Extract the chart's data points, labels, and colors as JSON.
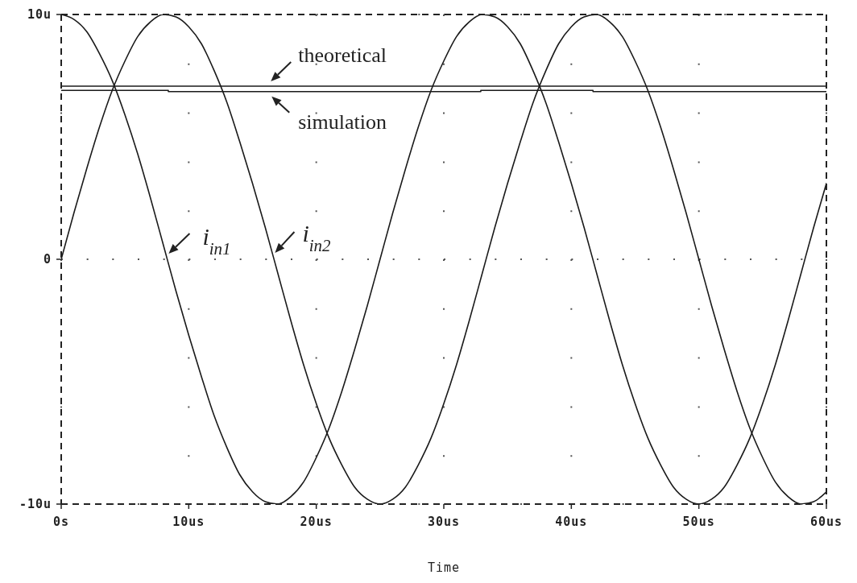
{
  "chart_data": {
    "type": "line",
    "xlabel": "Time",
    "x": [
      0,
      1,
      2,
      3,
      4,
      5,
      6,
      7,
      8,
      9,
      10,
      11,
      12,
      13,
      14,
      15,
      16,
      17,
      18,
      19,
      20,
      21,
      22,
      23,
      24,
      25,
      26,
      27,
      28,
      29,
      30,
      31,
      32,
      33,
      34,
      35,
      36,
      37,
      38,
      39,
      40,
      41,
      42,
      43,
      44,
      45,
      46,
      47,
      48,
      49,
      50,
      51,
      52,
      53,
      54,
      55,
      56,
      57,
      58,
      59,
      60
    ],
    "series": [
      {
        "color": "#1a1a1a",
        "values": [
          10,
          9.8,
          9.3,
          8.4,
          7.3,
          5.9,
          4.3,
          2.5,
          0.6,
          -1.3,
          -3.1,
          -4.8,
          -6.4,
          -7.7,
          -8.8,
          -9.5,
          -9.9,
          -10,
          -9.7,
          -9.1,
          -8.1,
          -6.9,
          -5.4,
          -3.7,
          -1.9,
          0,
          1.9,
          3.7,
          5.4,
          6.9,
          8.1,
          9.1,
          9.7,
          10,
          9.9,
          9.5,
          8.8,
          7.7,
          6.4,
          4.8,
          3.1,
          1.3,
          -0.6,
          -2.5,
          -4.3,
          -5.9,
          -7.3,
          -8.4,
          -9.3,
          -9.8,
          -10,
          -9.8,
          -9.3,
          -8.4,
          -7.3,
          -5.9,
          -4.3,
          -2.5,
          -0.6,
          1.3,
          3.1
        ]
      },
      {
        "color": "#1a1a1a",
        "values": [
          0,
          1.9,
          3.7,
          5.4,
          6.9,
          8.1,
          9.1,
          9.7,
          10,
          9.9,
          9.5,
          8.8,
          7.7,
          6.4,
          4.8,
          3.1,
          1.3,
          -0.6,
          -2.5,
          -4.3,
          -5.9,
          -7.3,
          -8.4,
          -9.3,
          -9.8,
          -10,
          -9.8,
          -9.3,
          -8.4,
          -7.3,
          -5.9,
          -4.3,
          -2.5,
          -0.6,
          1.3,
          3.1,
          4.8,
          6.4,
          7.7,
          8.8,
          9.5,
          9.9,
          10,
          9.7,
          9.1,
          8.1,
          6.9,
          5.4,
          3.7,
          1.9,
          0,
          -1.9,
          -3.7,
          -5.4,
          -6.9,
          -8.1,
          -9.1,
          -9.7,
          -10,
          -9.9,
          -9.5
        ]
      },
      {
        "type": "line",
        "x": [
          0,
          60
        ],
        "color": "#1a1a1a",
        "values": [
          7.07,
          7.07
        ]
      },
      {
        "type": "step",
        "x": [
          0,
          8.4,
          32.9,
          41.7,
          60
        ],
        "color": "#1a1a1a",
        "values": [
          6.9,
          6.85,
          6.9,
          6.85,
          6.85
        ]
      }
    ],
    "xlim": [
      0,
      60
    ],
    "xticks": [
      {
        "value": 0,
        "label": "0s"
      },
      {
        "value": 10,
        "label": "10us"
      },
      {
        "value": 20,
        "label": "20us"
      },
      {
        "value": 30,
        "label": "30us"
      },
      {
        "value": 40,
        "label": "40us"
      },
      {
        "value": 50,
        "label": "50us"
      },
      {
        "value": 60,
        "label": "60us"
      }
    ],
    "ylim": [
      -10,
      10
    ],
    "yticks": [
      {
        "value": -10,
        "label": "-10u"
      },
      0,
      {
        "value": 10,
        "label": "10u"
      }
    ],
    "grid": true,
    "marker": "none",
    "annotations": [
      {
        "text": "theoretical",
        "x": 16.5,
        "y": 7.07
      },
      {
        "text": "simulation",
        "x": 16.5,
        "y": 6.85
      },
      {
        "text": "i$_{in1}$",
        "x": 8.3,
        "y": 0
      },
      {
        "text": "i$_{in2}$",
        "x": 16.7,
        "y": 0
      }
    ]
  }
}
